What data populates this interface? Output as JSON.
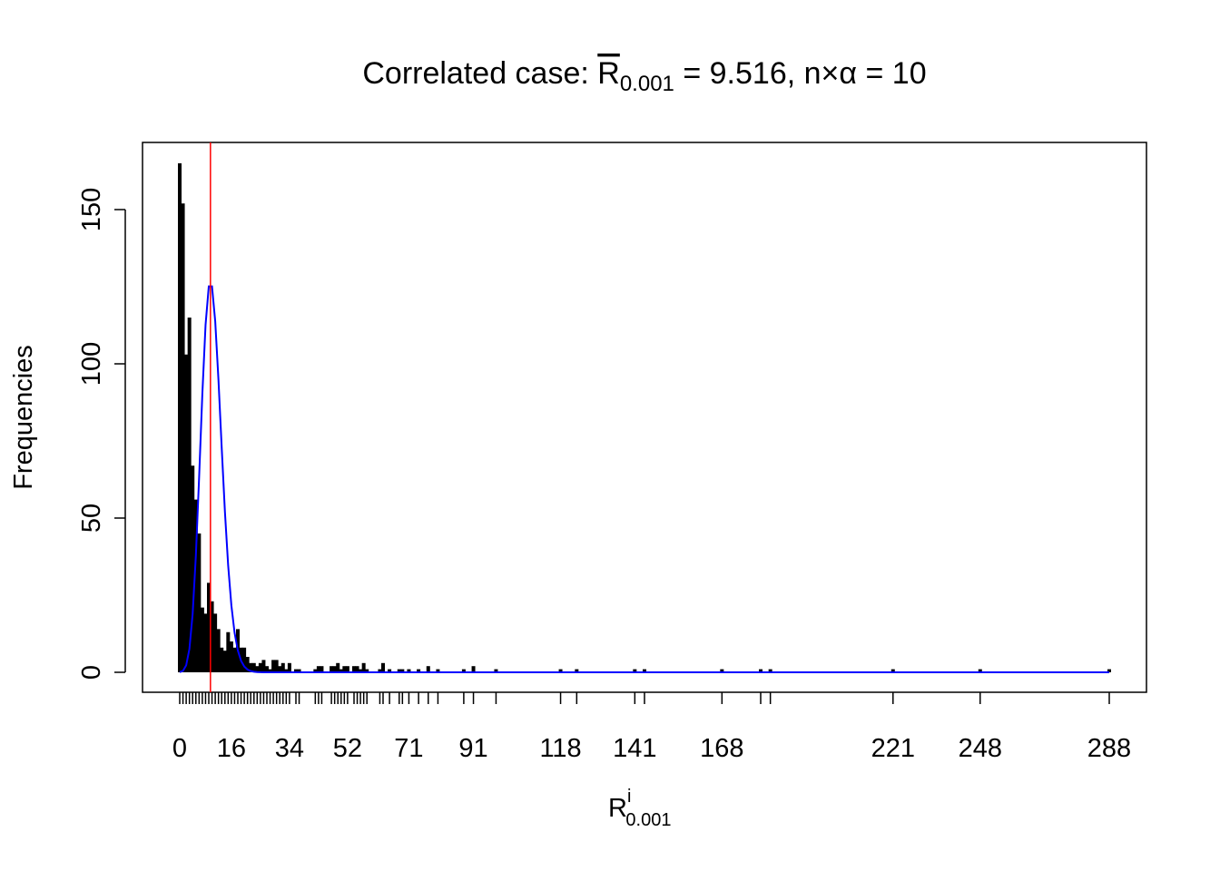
{
  "chart_data": {
    "type": "bar",
    "title": {
      "prefix": "Correlated case: ",
      "rbar": "R",
      "rbar_sub": "0.001",
      "mid": " = 9.516, n",
      "times": "×",
      "alpha": "α",
      "suffix": " = 10"
    },
    "xlabel": {
      "main": "R",
      "sup": "i",
      "sub": "0.001"
    },
    "ylabel": "Frequencies",
    "xlim": [
      0,
      288
    ],
    "ylim": [
      0,
      165
    ],
    "x_tick_labels": [
      0,
      16,
      34,
      52,
      71,
      91,
      118,
      141,
      168,
      221,
      248,
      288
    ],
    "y_ticks": [
      0,
      50,
      100,
      150
    ],
    "mean_line": {
      "value": 9.516,
      "color": "#ff0000"
    },
    "poisson_curve": {
      "lambda": 10,
      "total": 1000,
      "color": "#0000ff"
    },
    "bar_color": "#000000",
    "values": [
      [
        0,
        165
      ],
      [
        1,
        152
      ],
      [
        2,
        103
      ],
      [
        3,
        115
      ],
      [
        4,
        67
      ],
      [
        5,
        56
      ],
      [
        6,
        45
      ],
      [
        7,
        21
      ],
      [
        8,
        19
      ],
      [
        9,
        29
      ],
      [
        10,
        23
      ],
      [
        11,
        19
      ],
      [
        12,
        14
      ],
      [
        13,
        8
      ],
      [
        14,
        7
      ],
      [
        15,
        13
      ],
      [
        16,
        10
      ],
      [
        17,
        8
      ],
      [
        18,
        14
      ],
      [
        19,
        8
      ],
      [
        20,
        8
      ],
      [
        21,
        5
      ],
      [
        22,
        3
      ],
      [
        23,
        3
      ],
      [
        24,
        2
      ],
      [
        25,
        3
      ],
      [
        26,
        4
      ],
      [
        27,
        2
      ],
      [
        28,
        1
      ],
      [
        29,
        4
      ],
      [
        30,
        4
      ],
      [
        31,
        2
      ],
      [
        32,
        3
      ],
      [
        33,
        1
      ],
      [
        34,
        3
      ],
      [
        36,
        1
      ],
      [
        37,
        1
      ],
      [
        42,
        1
      ],
      [
        43,
        2
      ],
      [
        44,
        2
      ],
      [
        47,
        2
      ],
      [
        48,
        2
      ],
      [
        49,
        3
      ],
      [
        50,
        1
      ],
      [
        51,
        2
      ],
      [
        52,
        2
      ],
      [
        54,
        2
      ],
      [
        55,
        2
      ],
      [
        56,
        1
      ],
      [
        57,
        3
      ],
      [
        58,
        1
      ],
      [
        62,
        1
      ],
      [
        63,
        3
      ],
      [
        65,
        1
      ],
      [
        68,
        1
      ],
      [
        69,
        1
      ],
      [
        71,
        1
      ],
      [
        74,
        1
      ],
      [
        77,
        2
      ],
      [
        80,
        1
      ],
      [
        88,
        1
      ],
      [
        91,
        2
      ],
      [
        98,
        1
      ],
      [
        118,
        1
      ],
      [
        123,
        1
      ],
      [
        141,
        1
      ],
      [
        144,
        1
      ],
      [
        168,
        1
      ],
      [
        180,
        1
      ],
      [
        183,
        1
      ],
      [
        221,
        1
      ],
      [
        248,
        1
      ],
      [
        288,
        1
      ]
    ]
  }
}
